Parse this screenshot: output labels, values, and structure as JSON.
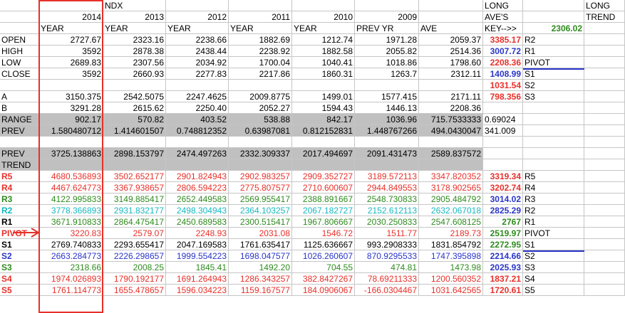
{
  "header": {
    "row0": [
      "",
      "",
      "NDX",
      "",
      "",
      "",
      "",
      "",
      "LONG",
      "",
      "LONG"
    ],
    "row1": [
      "",
      "2014",
      "2013",
      "2012",
      "2011",
      "2010",
      "2009",
      "",
      "AVE'S",
      "",
      "TREND"
    ],
    "row2": [
      "",
      "YEAR",
      "YEAR",
      "YEAR",
      "YEAR",
      "YEAR",
      "PREV YR",
      "AVE",
      "KEY-->>",
      "2306.02",
      ""
    ]
  },
  "rows": [
    {
      "label": "OPEN",
      "vals": [
        "2727.67",
        "2323.16",
        "2238.66",
        "1882.69",
        "1212.74",
        "1971.28",
        "2059.37"
      ],
      "key": "3385.17",
      "tag": "R2"
    },
    {
      "label": "HIGH",
      "vals": [
        "3592",
        "2878.38",
        "2438.44",
        "2238.92",
        "1882.58",
        "2055.82",
        "2514.36"
      ],
      "key": "3007.72",
      "tag": "R1"
    },
    {
      "label": "LOW",
      "vals": [
        "2689.83",
        "2307.56",
        "2034.92",
        "1700.04",
        "1040.41",
        "1018.86",
        "1798.60"
      ],
      "key": "2208.36",
      "tag": "PIVOT"
    },
    {
      "label": "CLOSE",
      "vals": [
        "3592",
        "2660.93",
        "2277.83",
        "2217.86",
        "1860.31",
        "1263.7",
        "2312.11"
      ],
      "key": "1408.99",
      "tag": "S1"
    },
    {
      "label": "",
      "vals": [
        "",
        "",
        "",
        "",
        "",
        "",
        ""
      ],
      "key": "1031.54",
      "tag": "S2"
    },
    {
      "label": "A",
      "vals": [
        "3150.375",
        "2542.5075",
        "2247.4625",
        "2009.8775",
        "1499.01",
        "1577.415",
        "2171.11"
      ],
      "key": "798.356",
      "tag": "S3"
    },
    {
      "label": "B",
      "vals": [
        "3291.28",
        "2615.62",
        "2250.40",
        "2052.27",
        "1594.43",
        "1446.13",
        "2208.36"
      ],
      "key": "",
      "tag": ""
    },
    {
      "label": "RANGE",
      "vals": [
        "902.17",
        "570.82",
        "403.52",
        "538.88",
        "842.17",
        "1036.96",
        "715.7533333"
      ],
      "key": "0.69024",
      "tag": ""
    },
    {
      "label": "PREV",
      "vals": [
        "1.580480712",
        "1.414601507",
        "0.748812352",
        "0.63987081",
        "0.812152831",
        "1.448767266",
        "494.0430047"
      ],
      "key": "341.009",
      "tag": ""
    },
    {
      "label": "",
      "vals": [
        "",
        "",
        "",
        "",
        "",
        "",
        ""
      ],
      "key": "",
      "tag": ""
    },
    {
      "label": "PREV",
      "vals": [
        "3725.138863",
        "2898.153797",
        "2474.497263",
        "2332.309337",
        "2017.494697",
        "2091.431473",
        "2589.837572"
      ],
      "key": "",
      "tag": ""
    },
    {
      "label": "TREND",
      "vals": [
        "",
        "",
        "",
        "",
        "",
        "",
        ""
      ],
      "key": "",
      "tag": ""
    },
    {
      "label": "R5",
      "vals": [
        "4680.536893",
        "3502.652177",
        "2901.824943",
        "2902.983257",
        "2909.352727",
        "3189.572113",
        "3347.820352"
      ],
      "key": "3319.34",
      "tag": "R5"
    },
    {
      "label": "R4",
      "vals": [
        "4467.624773",
        "3367.938657",
        "2806.594223",
        "2775.807577",
        "2710.600607",
        "2944.849553",
        "3178.902565"
      ],
      "key": "3202.74",
      "tag": "R4"
    },
    {
      "label": "R3",
      "vals": [
        "4122.995833",
        "3149.885417",
        "2652.449583",
        "2569.955417",
        "2388.891667",
        "2548.730833",
        "2905.484792"
      ],
      "key": "3014.02",
      "tag": "R3"
    },
    {
      "label": "R2",
      "vals": [
        "3778.366893",
        "2931.832177",
        "2498.304943",
        "2364.103257",
        "2067.182727",
        "2152.612113",
        "2632.067018"
      ],
      "key": "2825.29",
      "tag": "R2"
    },
    {
      "label": "R1",
      "vals": [
        "3671.910833",
        "2864.475417",
        "2450.689583",
        "2300.515417",
        "1967.806667",
        "2030.250833",
        "2547.608125"
      ],
      "key": "2767",
      "tag": "R1"
    },
    {
      "label": "PIVOT",
      "vals": [
        "3220.83",
        "2579.07",
        "2248.93",
        "2031.08",
        "1546.72",
        "1511.77",
        "2189.73"
      ],
      "key": "2519.97",
      "tag": "PIVOT"
    },
    {
      "label": "S1",
      "vals": [
        "2769.740833",
        "2293.655417",
        "2047.169583",
        "1761.635417",
        "1125.636667",
        "993.2908333",
        "1831.854792"
      ],
      "key": "2272.95",
      "tag": "S1"
    },
    {
      "label": "S2",
      "vals": [
        "2663.284773",
        "2226.298657",
        "1999.554223",
        "1698.047577",
        "1026.260607",
        "870.9295533",
        "1747.395898"
      ],
      "key": "2214.66",
      "tag": "S2"
    },
    {
      "label": "S3",
      "vals": [
        "2318.66",
        "2008.25",
        "1845.41",
        "1492.20",
        "704.55",
        "474.81",
        "1473.98"
      ],
      "key": "2025.93",
      "tag": "S3"
    },
    {
      "label": "S4",
      "vals": [
        "1974.026893",
        "1790.192177",
        "1691.264943",
        "1286.343257",
        "382.8427267",
        "78.69211333",
        "1200.560352"
      ],
      "key": "1837.21",
      "tag": "S4"
    },
    {
      "label": "S5",
      "vals": [
        "1761.114773",
        "1655.478657",
        "1596.034223",
        "1159.167577",
        "184.0906067",
        "-166.0304467",
        "1031.642565"
      ],
      "key": "1720.61",
      "tag": "S5"
    }
  ],
  "colors": {
    "red": "#e8302a",
    "blue": "#2a35c8",
    "green": "#2e8b1e",
    "teal": "#17b8c0",
    "gray": "#c0c0c0",
    "key_green": "#2e8b1e"
  }
}
